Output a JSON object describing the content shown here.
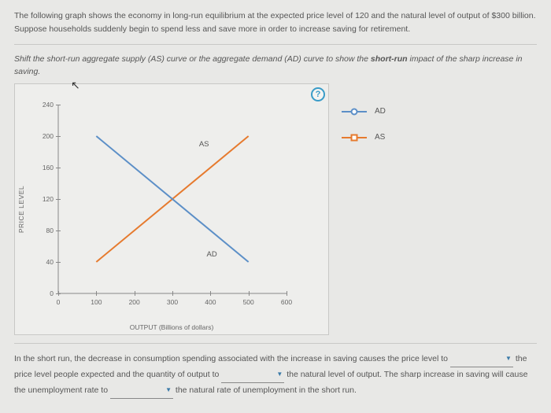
{
  "intro": "The following graph shows the economy in long-run equilibrium at the expected price level of 120 and the natural level of output of $300 billion. Suppose households suddenly begin to spend less and save more in order to increase saving for retirement.",
  "instruction_pre": "Shift the short-run aggregate supply (AS) curve or the aggregate demand (AD) curve to show the ",
  "instruction_bold": "short-run",
  "instruction_post": " impact of the sharp increase in saving.",
  "help": "?",
  "chart": {
    "type": "line",
    "ylabel": "PRICE LEVEL",
    "xlabel": "OUTPUT (Billions of dollars)",
    "xlim": [
      0,
      600
    ],
    "ylim": [
      0,
      240
    ],
    "xticks": [
      0,
      100,
      200,
      300,
      400,
      500,
      600
    ],
    "yticks": [
      0,
      40,
      80,
      120,
      160,
      200,
      240
    ],
    "axis_color": "#888888",
    "as_line": {
      "color": "#e67a2e",
      "x1": 100,
      "y1": 40,
      "x2": 500,
      "y2": 200,
      "label": "AS",
      "label_pos": {
        "x": 370,
        "y": 195
      }
    },
    "ad_line": {
      "color": "#5c8fc7",
      "x1": 100,
      "y1": 200,
      "x2": 500,
      "y2": 40,
      "label": "AD",
      "label_pos": {
        "x": 390,
        "y": 55
      }
    },
    "line_width": 2
  },
  "legend": {
    "ad": {
      "label": "AD",
      "color": "#5c8fc7",
      "marker_shape": "circle"
    },
    "as": {
      "label": "AS",
      "color": "#e67a2e",
      "marker_shape": "square"
    }
  },
  "bottom": {
    "t1": "In the short run, the decrease in consumption spending associated with the increase in saving causes the price level to ",
    "t2": " the price level people expected and the quantity of output to ",
    "t3": " the natural level of output. The sharp increase in saving will cause the unemployment rate to ",
    "t4": " the natural rate of unemployment in the short run."
  }
}
